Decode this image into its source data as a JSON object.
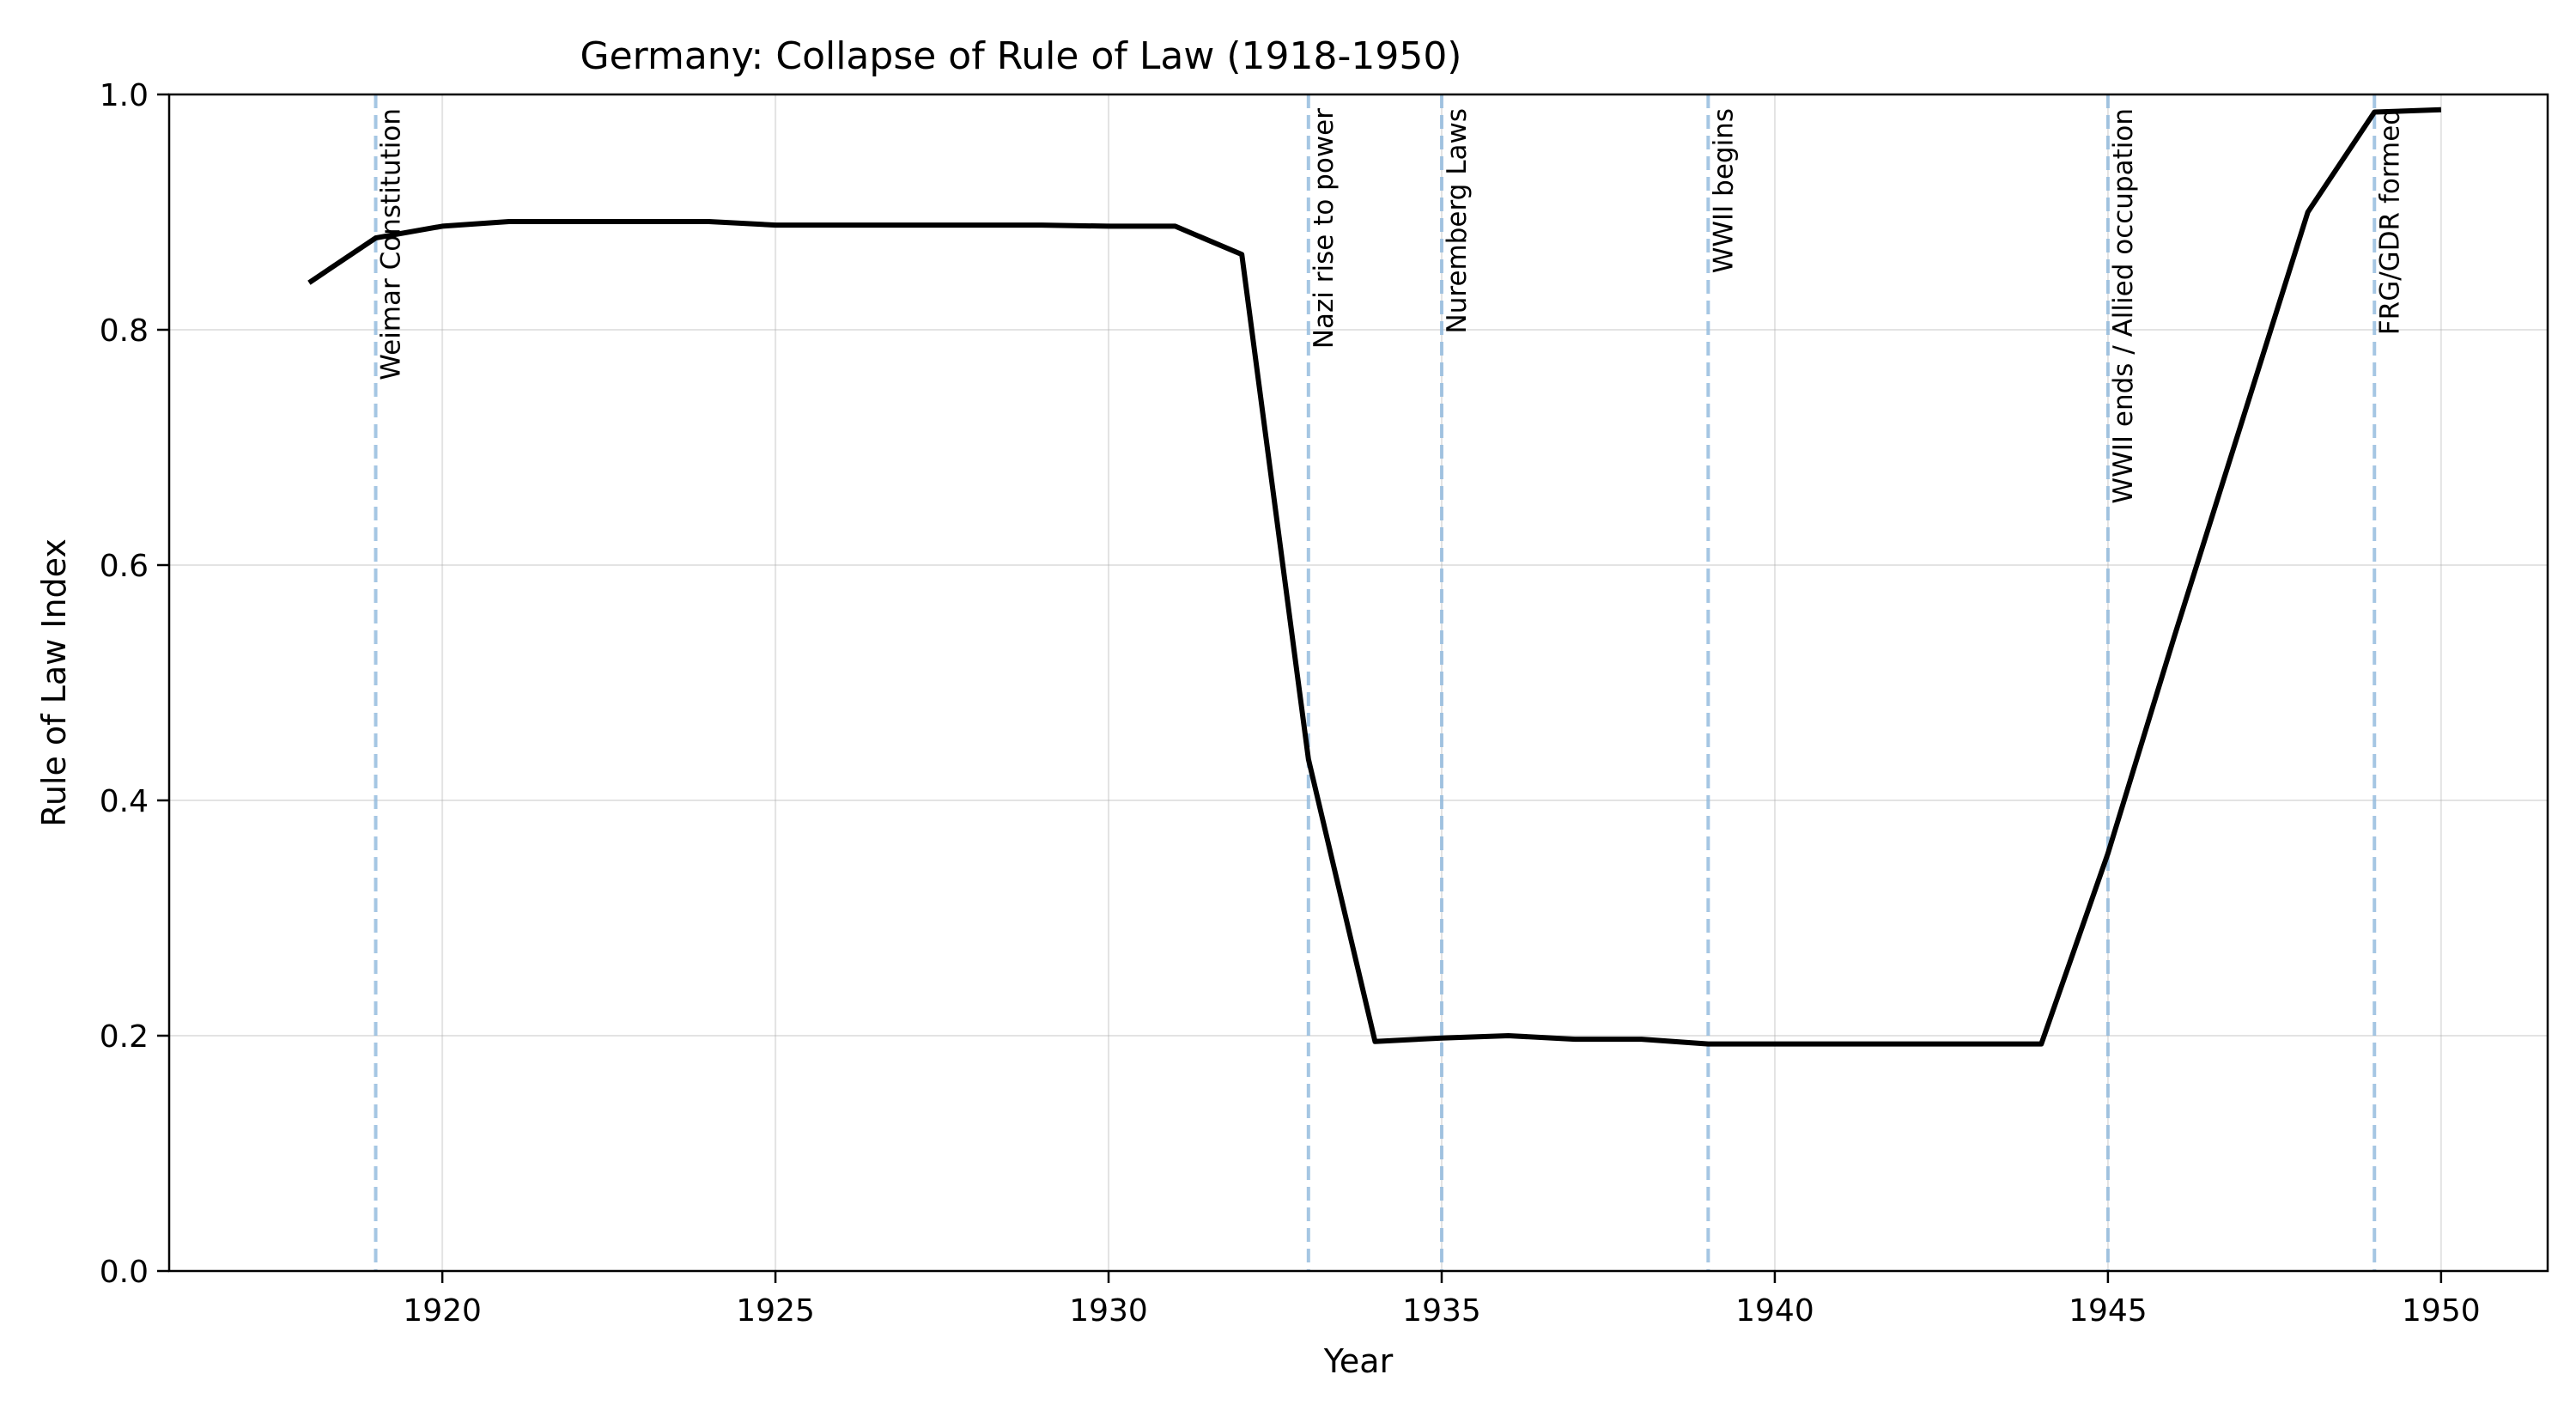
{
  "chart_data": {
    "type": "line",
    "title": "Germany: Collapse of Rule of Law (1918-1950)",
    "xlabel": "Year",
    "ylabel": "Rule of Law Index",
    "xlim": [
      1915.9,
      1951.6
    ],
    "ylim": [
      0.0,
      1.0
    ],
    "xticks": [
      1920,
      1925,
      1930,
      1935,
      1940,
      1945,
      1950
    ],
    "yticks": [
      "0.0",
      "0.2",
      "0.4",
      "0.6",
      "0.8",
      "1.0"
    ],
    "grid": true,
    "legend": "none",
    "colors": {
      "line": "#000000",
      "events": "#8fb8dc"
    },
    "series": [
      {
        "x": [
          1918,
          1919,
          1920,
          1921,
          1922,
          1923,
          1924,
          1925,
          1926,
          1927,
          1928,
          1929,
          1930,
          1931,
          1932,
          1933,
          1934,
          1935,
          1936,
          1937,
          1938,
          1939,
          1940,
          1941,
          1942,
          1943,
          1944,
          1945,
          1946,
          1947,
          1948,
          1949,
          1950
        ],
        "values": [
          0.84,
          0.878,
          0.888,
          0.892,
          0.892,
          0.892,
          0.892,
          0.889,
          0.889,
          0.889,
          0.889,
          0.889,
          0.888,
          0.888,
          0.864,
          0.435,
          0.195,
          0.198,
          0.2,
          0.197,
          0.197,
          0.193,
          0.193,
          0.193,
          0.193,
          0.193,
          0.193,
          0.355,
          0.54,
          0.72,
          0.9,
          0.985,
          0.987
        ]
      }
    ],
    "annotations": [
      {
        "x": 1919,
        "text": "Weimar Constitution"
      },
      {
        "x": 1933,
        "text": "Nazi rise to power"
      },
      {
        "x": 1935,
        "text": "Nuremberg Laws"
      },
      {
        "x": 1939,
        "text": "WWII begins"
      },
      {
        "x": 1945,
        "text": "WWII ends / Allied occupation"
      },
      {
        "x": 1949,
        "text": "FRG/GDR formed"
      }
    ]
  }
}
